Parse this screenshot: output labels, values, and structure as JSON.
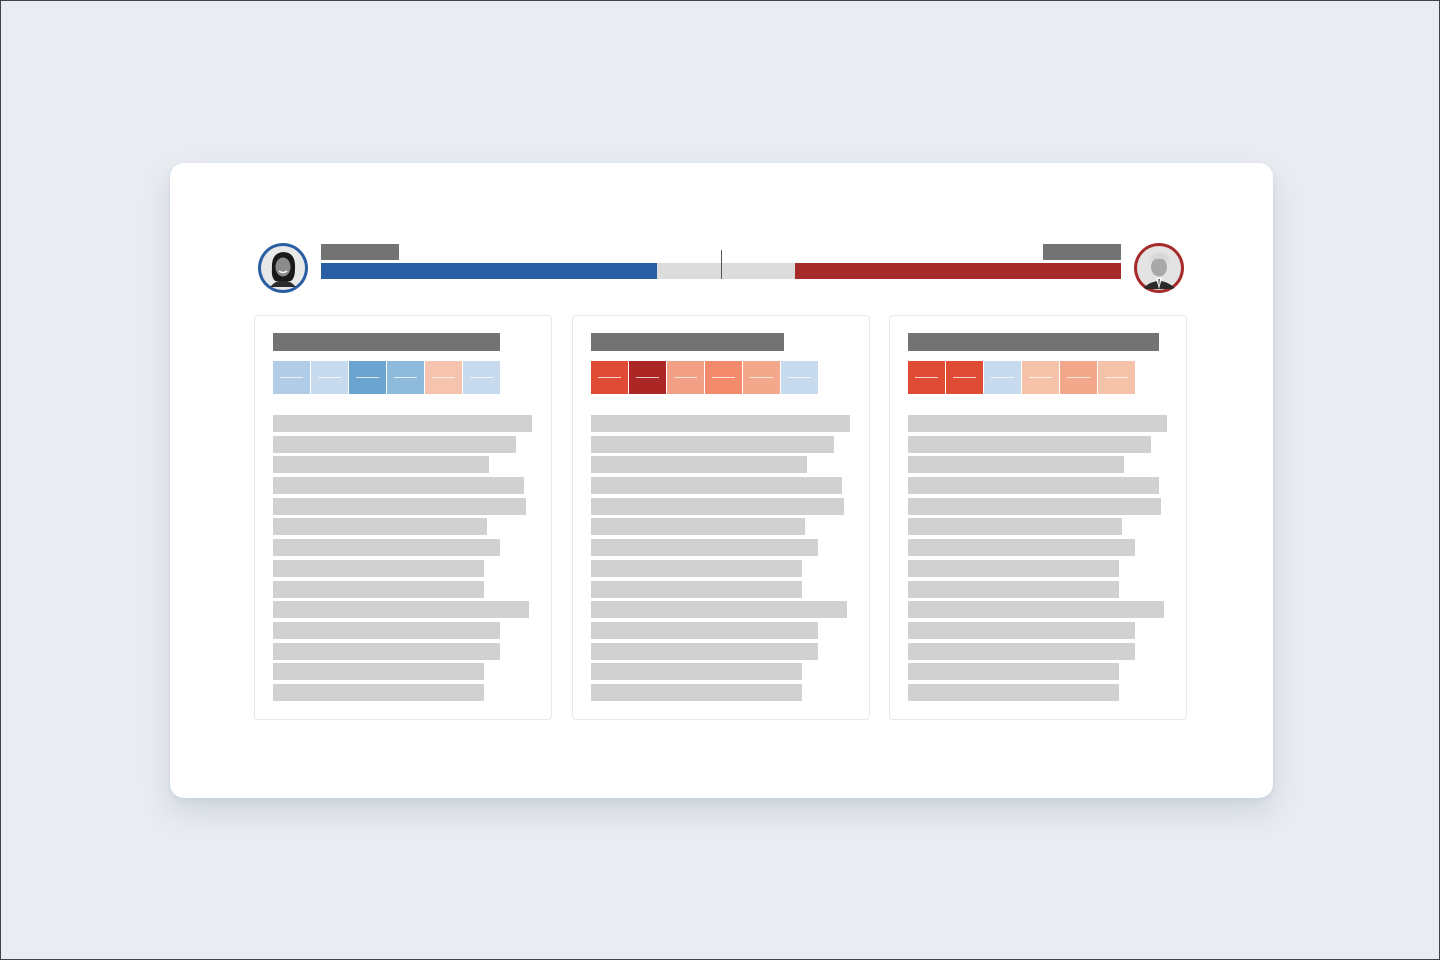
{
  "theme": {
    "background": "#e9edf1",
    "card": "#ffffff",
    "placeholder_dark": "#737373",
    "placeholder_light": "#d1d1d1",
    "democrat_blue": "#2a5ea4",
    "republican_red": "#a52a2a",
    "tally_track": "#dcdcdc"
  },
  "header": {
    "left_candidate": {
      "avatar_icon": "candidate-portrait-icon",
      "ring_color": "#2a5ea4"
    },
    "right_candidate": {
      "avatar_icon": "candidate-portrait-icon",
      "ring_color": "#a52a2a"
    },
    "tally": {
      "left_share": 0.42,
      "right_share": 0.408,
      "left_color": "#2a5ea4",
      "right_color": "#a52a2a"
    }
  },
  "panels": [
    {
      "title_length": 0.86,
      "tiles": [
        "#b1cce6",
        "#c8daee",
        "#6aa4cf",
        "#8dbada",
        "#f6c3ae",
        "#c8daee"
      ],
      "line_lengths": [
        0.98,
        0.92,
        0.82,
        0.95,
        0.96,
        0.81,
        0.86,
        0.8,
        0.8,
        0.97,
        0.86,
        0.86,
        0.8,
        0.8
      ]
    },
    {
      "title_length": 0.73,
      "tiles": [
        "#e04b35",
        "#ab2624",
        "#f2a085",
        "#f28a6b",
        "#f3a88c",
        "#c8daee"
      ],
      "line_lengths": [
        0.98,
        0.92,
        0.82,
        0.95,
        0.96,
        0.81,
        0.86,
        0.8,
        0.8,
        0.97,
        0.86,
        0.86,
        0.8,
        0.8
      ]
    },
    {
      "title_length": 0.95,
      "tiles": [
        "#e04b35",
        "#e04b35",
        "#c8daee",
        "#f7c2aa",
        "#f3a88c",
        "#f7c2aa"
      ],
      "line_lengths": [
        0.98,
        0.92,
        0.82,
        0.95,
        0.96,
        0.81,
        0.86,
        0.8,
        0.8,
        0.97,
        0.86,
        0.86,
        0.8,
        0.8
      ]
    }
  ]
}
